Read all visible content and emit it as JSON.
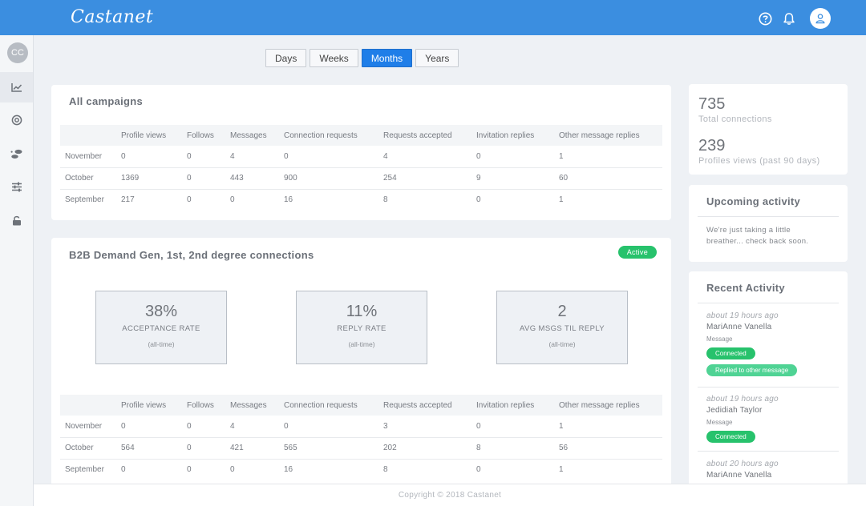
{
  "app": {
    "logo": "Castanet"
  },
  "sidebar": {
    "avatar_initials": "CC"
  },
  "range": {
    "buttons": [
      "Days",
      "Weeks",
      "Months",
      "Years"
    ],
    "selected": "Months"
  },
  "columns": [
    "",
    "Profile views",
    "Follows",
    "Messages",
    "Connection requests",
    "Requests accepted",
    "Invitation replies",
    "Other message replies"
  ],
  "all_campaigns": {
    "title": "All campaigns",
    "rows": [
      [
        "November",
        "0",
        "0",
        "4",
        "0",
        "4",
        "0",
        "1"
      ],
      [
        "October",
        "1369",
        "0",
        "443",
        "900",
        "254",
        "9",
        "60"
      ],
      [
        "September",
        "217",
        "0",
        "0",
        "16",
        "8",
        "0",
        "1"
      ]
    ]
  },
  "campaign": {
    "title": "B2B Demand Gen, 1st, 2nd degree connections",
    "status": "Active",
    "metrics": [
      {
        "value": "38%",
        "label": "ACCEPTANCE RATE",
        "sub": "(all-time)"
      },
      {
        "value": "11%",
        "label": "REPLY RATE",
        "sub": "(all-time)"
      },
      {
        "value": "2",
        "label": "AVG MSGS TIL REPLY",
        "sub": "(all-time)"
      }
    ],
    "rows": [
      [
        "November",
        "0",
        "0",
        "4",
        "0",
        "3",
        "0",
        "1"
      ],
      [
        "October",
        "564",
        "0",
        "421",
        "565",
        "202",
        "8",
        "56"
      ],
      [
        "September",
        "0",
        "0",
        "0",
        "16",
        "8",
        "0",
        "1"
      ]
    ]
  },
  "summary": {
    "total_connections": "735",
    "total_connections_label": "Total connections",
    "profile_views": "239",
    "profile_views_label": "Profiles views (past 90 days)"
  },
  "upcoming": {
    "title": "Upcoming activity",
    "text": "We're just taking a little breather... check back soon."
  },
  "recent": {
    "title": "Recent Activity",
    "items": [
      {
        "time": "about 19 hours ago",
        "name": "MariAnne Vanella",
        "type": "Message",
        "pills": [
          "Connected",
          "Replied to other message"
        ]
      },
      {
        "time": "about 19 hours ago",
        "name": "Jedidiah Taylor",
        "type": "Message",
        "pills": [
          "Connected"
        ]
      },
      {
        "time": "about 20 hours ago",
        "name": "MariAnne Vanella"
      }
    ]
  },
  "footer": {
    "text": "Copyright © 2018 Castanet"
  },
  "colors": {
    "topbar": "#3b8ee0",
    "accent": "#1f7ee8",
    "active_green": "#27c26c"
  },
  "icons": [
    "help-icon",
    "bell-icon",
    "user-icon",
    "chart-icon",
    "target-icon",
    "footprints-icon",
    "sliders-icon",
    "lock-icon"
  ]
}
